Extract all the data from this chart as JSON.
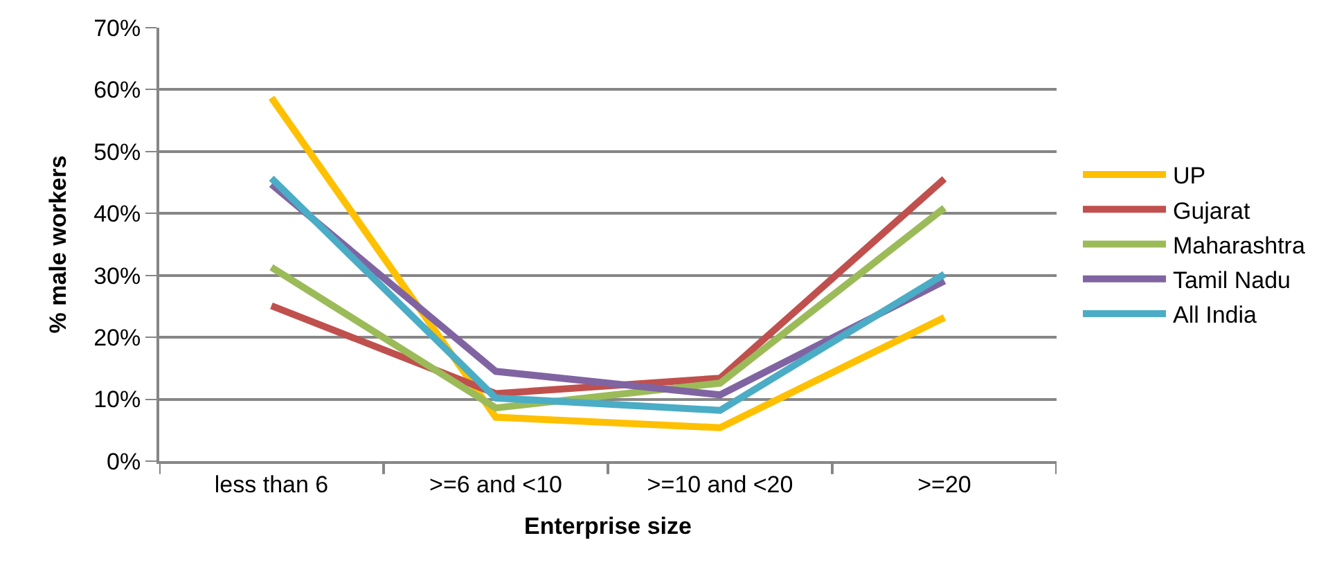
{
  "chart_data": {
    "type": "line",
    "xlabel": "Enterprise size",
    "ylabel": "% male workers",
    "categories": [
      "less than 6",
      ">=6 and <10",
      ">=10 and <20",
      ">=20"
    ],
    "series": [
      {
        "name": "UP",
        "color": "#ffc000",
        "values": [
          58.7,
          7.1,
          5.4,
          23.2
        ]
      },
      {
        "name": "Gujarat",
        "color": "#c0504d",
        "values": [
          25.1,
          10.9,
          13.4,
          45.6
        ]
      },
      {
        "name": "Maharashtra",
        "color": "#9bbb59",
        "values": [
          31.3,
          8.6,
          12.6,
          40.9
        ]
      },
      {
        "name": "Tamil Nadu",
        "color": "#8064a2",
        "values": [
          44.7,
          14.5,
          10.7,
          29.1
        ]
      },
      {
        "name": "All India",
        "color": "#4bacc6",
        "values": [
          45.7,
          10.2,
          8.2,
          30.2
        ]
      }
    ],
    "ylim": [
      0,
      70
    ],
    "yticks": [
      {
        "value": 0,
        "label": "0%"
      },
      {
        "value": 10,
        "label": "10%"
      },
      {
        "value": 20,
        "label": "20%"
      },
      {
        "value": 30,
        "label": "30%"
      },
      {
        "value": 40,
        "label": "40%"
      },
      {
        "value": 50,
        "label": "50%"
      },
      {
        "value": 60,
        "label": "60%"
      },
      {
        "value": 70,
        "label": "70%"
      }
    ],
    "grid": "y",
    "legend": "right",
    "marker": "none",
    "line_style": "solid"
  }
}
